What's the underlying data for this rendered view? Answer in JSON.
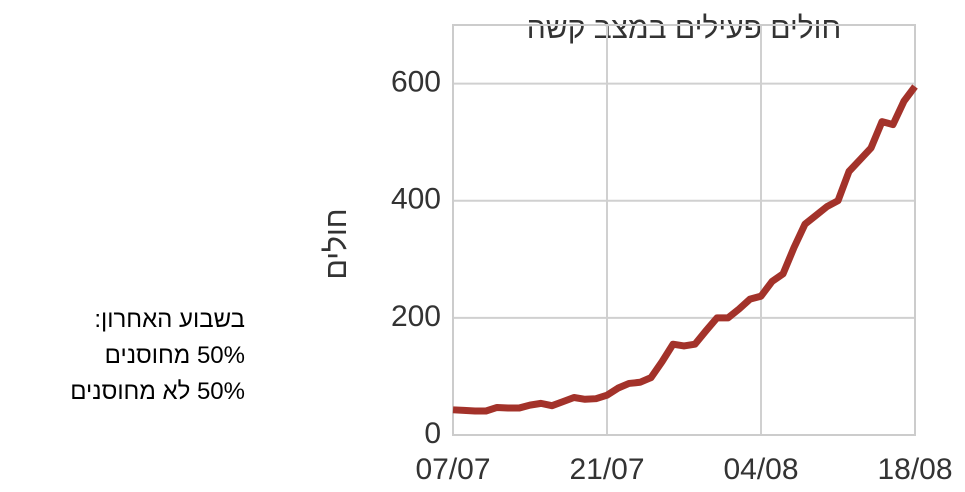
{
  "chart_data": {
    "type": "line",
    "title": "חולים פעילים במצב קשה",
    "y_label": "חולים",
    "x": [
      "07/07",
      "08/07",
      "09/07",
      "10/07",
      "11/07",
      "12/07",
      "13/07",
      "14/07",
      "15/07",
      "16/07",
      "17/07",
      "18/07",
      "19/07",
      "20/07",
      "21/07",
      "22/07",
      "23/07",
      "24/07",
      "25/07",
      "26/07",
      "27/07",
      "28/07",
      "29/07",
      "30/07",
      "31/07",
      "01/08",
      "02/08",
      "03/08",
      "04/08",
      "05/08",
      "06/08",
      "07/08",
      "08/08",
      "09/08",
      "10/08",
      "11/08",
      "12/08",
      "13/08",
      "14/08",
      "15/08",
      "16/08",
      "17/08",
      "18/08"
    ],
    "series": [
      {
        "name": "חולים",
        "color": "#a3322a",
        "values": [
          43,
          42,
          41,
          41,
          47,
          46,
          46,
          51,
          54,
          50,
          57,
          64,
          61,
          62,
          68,
          80,
          88,
          90,
          98,
          125,
          155,
          152,
          155,
          178,
          200,
          200,
          215,
          232,
          237,
          262,
          275,
          320,
          360,
          375,
          390,
          400,
          450,
          470,
          490,
          535,
          530,
          570,
          595
        ]
      }
    ],
    "ylim": [
      0,
      700
    ],
    "yticks": [
      0,
      200,
      400,
      600
    ],
    "xticks": [
      "07/07",
      "21/07",
      "04/08",
      "18/08"
    ],
    "grid": true
  },
  "annotation": {
    "lines": [
      "בשבוע האחרון:",
      "50% מחוסנים",
      "50% לא מחוסנים"
    ]
  }
}
